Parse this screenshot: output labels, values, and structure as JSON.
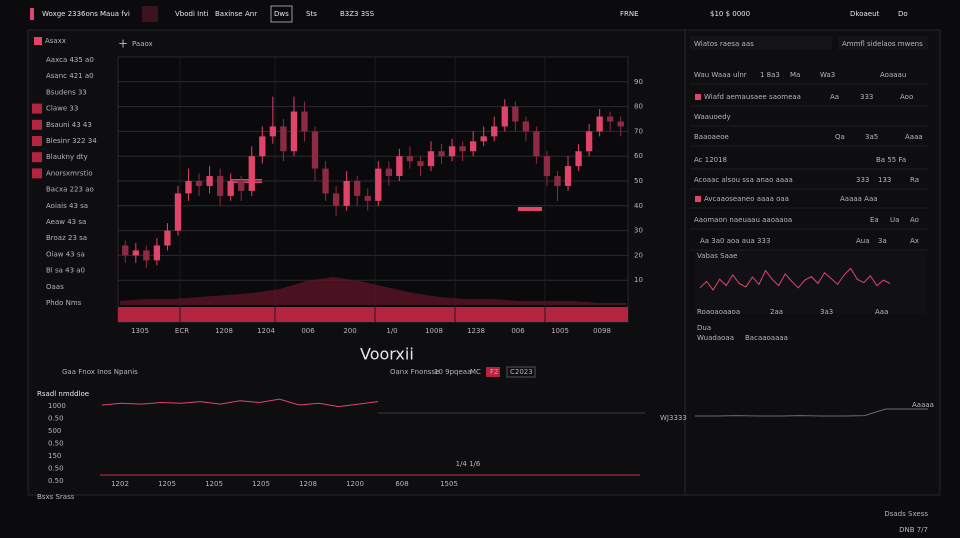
{
  "nav": {
    "logo": "Woxge 2336ons",
    "items": [
      "Maua fvi",
      "Vbodi Inti",
      "Baxinse",
      "Anr",
      "Dws",
      "Sts",
      "B3Z3 3SS"
    ],
    "right": [
      "FRNE",
      "$10 $ 0000",
      "Dkoaeut",
      "Do"
    ]
  },
  "sidebar": {
    "header": "Asaxx",
    "items": [
      "Aaxca 435 a0",
      "Asanc 421 a0",
      "Bsudens 33",
      "Clawe 33",
      "Bsauni 43 43",
      "Blesinr 322 34",
      "Blaukny dty",
      "Anorsxmrstio",
      "Bacxa 223 ao",
      "Aoiais 43 sa",
      "Aeaw 43 sa",
      "Broaz 23 sa",
      "Oiaw 43 sa",
      "Bl sa 43 a0",
      "Oaas",
      "Phdo Nms"
    ]
  },
  "main_chart": {
    "type": "candlestick",
    "toolbar": "Paaox",
    "ylim": [
      0,
      100
    ],
    "yticks": [
      10,
      20,
      30,
      40,
      50,
      60,
      70,
      80,
      90
    ],
    "xlabels": [
      "1305",
      "ECR",
      "1208",
      "1204",
      "006",
      "200",
      "1/0",
      "1008",
      "1238",
      "006",
      "1005",
      "0098"
    ],
    "candles": [
      [
        24,
        26,
        17,
        20
      ],
      [
        20,
        25,
        17,
        22
      ],
      [
        22,
        24,
        15,
        18
      ],
      [
        18,
        27,
        16,
        24
      ],
      [
        24,
        33,
        22,
        30
      ],
      [
        30,
        48,
        28,
        45
      ],
      [
        45,
        55,
        42,
        50
      ],
      [
        50,
        53,
        44,
        48
      ],
      [
        48,
        56,
        45,
        52
      ],
      [
        52,
        55,
        40,
        44
      ],
      [
        44,
        53,
        42,
        50
      ],
      [
        50,
        52,
        42,
        46
      ],
      [
        46,
        64,
        44,
        60
      ],
      [
        60,
        72,
        57,
        68
      ],
      [
        68,
        84,
        65,
        72
      ],
      [
        72,
        75,
        58,
        62
      ],
      [
        62,
        84,
        60,
        78
      ],
      [
        78,
        82,
        66,
        70
      ],
      [
        70,
        72,
        50,
        55
      ],
      [
        55,
        58,
        42,
        45
      ],
      [
        45,
        48,
        36,
        40
      ],
      [
        40,
        54,
        38,
        50
      ],
      [
        50,
        52,
        40,
        44
      ],
      [
        44,
        47,
        38,
        42
      ],
      [
        42,
        58,
        40,
        55
      ],
      [
        55,
        58,
        48,
        52
      ],
      [
        52,
        63,
        50,
        60
      ],
      [
        60,
        64,
        55,
        58
      ],
      [
        58,
        60,
        52,
        56
      ],
      [
        56,
        66,
        54,
        62
      ],
      [
        62,
        65,
        57,
        60
      ],
      [
        60,
        67,
        58,
        64
      ],
      [
        64,
        66,
        58,
        62
      ],
      [
        62,
        70,
        60,
        66
      ],
      [
        66,
        72,
        64,
        68
      ],
      [
        68,
        76,
        66,
        72
      ],
      [
        72,
        83,
        70,
        80
      ],
      [
        80,
        82,
        70,
        74
      ],
      [
        74,
        76,
        66,
        70
      ],
      [
        70,
        72,
        57,
        60
      ],
      [
        60,
        62,
        48,
        52
      ],
      [
        52,
        54,
        42,
        48
      ],
      [
        48,
        60,
        46,
        56
      ],
      [
        56,
        65,
        54,
        62
      ],
      [
        62,
        73,
        60,
        70
      ],
      [
        70,
        79,
        68,
        76
      ],
      [
        76,
        78,
        70,
        74
      ],
      [
        74,
        76,
        68,
        72
      ]
    ],
    "volume": [
      2,
      3,
      3,
      4,
      5,
      6,
      8,
      12,
      14,
      12,
      9,
      6,
      4,
      3,
      3,
      2,
      2,
      2,
      1,
      1
    ]
  },
  "center_title": "Voorxii",
  "controls": [
    "Gaa Fnox Inos Npanis",
    "Oanx Fnonsse",
    "10 9pqeaa",
    "MC",
    "F2",
    "C2023"
  ],
  "lower_chart": {
    "type": "line",
    "title": "Rsadl nmddloe",
    "ylabels": [
      "1000",
      "0.50",
      "500",
      "0.50",
      "150",
      "0.50",
      "0.50"
    ],
    "xlabels": [
      "1202",
      "1205",
      "1205",
      "1205",
      "1208",
      "1200",
      "608",
      "1505"
    ],
    "note": "1/4 1/6",
    "side": "WJ3333",
    "ylim": [
      0,
      100
    ],
    "values": [
      88,
      90,
      89,
      91,
      90,
      92,
      89,
      93,
      91,
      95,
      88,
      90,
      86,
      89,
      92
    ]
  },
  "right_panel": {
    "tabs": [
      "Wiatos raesa aas",
      "Ammfl sidelaos mwens"
    ],
    "rows": [
      [
        "Wau Waaa ulnr",
        "1 8a3",
        "Ma",
        "Wa3",
        "Aoaaau"
      ],
      [
        "Wiafd aemausaee saomeaa",
        "Aa",
        "333",
        "Aoo"
      ],
      [
        "Waauoedy"
      ],
      [
        "Baaoaeoe",
        "Qa",
        "3a5",
        "Aaaa"
      ],
      [
        "Ac 12018",
        "Ba 55 Fa"
      ],
      [
        "Acoaac alsou ssa anao aaaa",
        "333",
        "133",
        "Ra"
      ],
      [
        "Avcaaoseaneo aaaa oaa",
        "Aaaaa Aaa"
      ],
      [
        "Aaomaon naeuaau aaoaaoa",
        "Ea",
        "Ua",
        "Ao"
      ],
      [
        "Aa 3a0 aoa aua 333",
        "Aua",
        "3a",
        "Ax"
      ]
    ],
    "mini_title": "Vabas Saae",
    "mini_values": [
      40,
      55,
      35,
      60,
      45,
      70,
      50,
      42,
      65,
      48,
      80,
      60,
      45,
      72,
      55,
      40,
      58,
      66,
      50,
      75,
      62,
      48,
      70,
      85,
      60,
      52,
      68,
      45,
      58,
      50
    ],
    "footer_rows": [
      [
        "Roaoaoaaoa",
        "2aa",
        "3a3",
        "Aaa"
      ],
      [
        "Dua"
      ],
      [
        "Wuadaoaa",
        "Bacaaoaaaa"
      ]
    ],
    "bottom_values": [
      40,
      40,
      41,
      40,
      40,
      41,
      40,
      40,
      41,
      60,
      60,
      60
    ],
    "bottom_label": "Aaaaa"
  },
  "footer": {
    "left": "Bsxs Srass",
    "right": [
      "Dsads Sxess",
      "DNB 7/7"
    ]
  }
}
